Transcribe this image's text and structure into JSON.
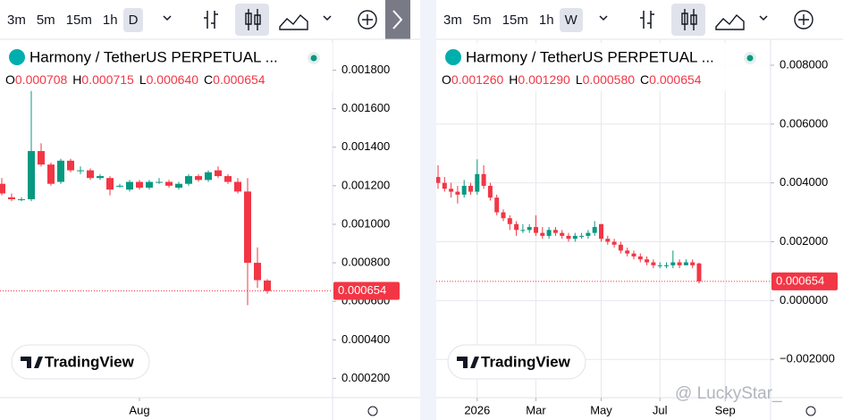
{
  "panels": [
    {
      "toolbar": {
        "intervals": [
          "3m",
          "5m",
          "15m",
          "1h",
          "D"
        ]
      },
      "title": "Harmony / TetherUS PERPETUAL ...",
      "legend": [
        "O",
        "0.000708",
        "H",
        "0.000715",
        "L",
        "0.000640",
        "C",
        "0.000654"
      ],
      "chart": {
        "type": "candlestick",
        "grid": false,
        "up_color": "#089981",
        "down_color": "#f23645",
        "categories": [
          null,
          null,
          null,
          null,
          null,
          null,
          null,
          null,
          null,
          null,
          null,
          null,
          null,
          null,
          "Aug",
          null,
          null,
          null,
          null,
          null,
          null,
          null,
          null,
          null,
          null,
          null,
          null,
          null
        ],
        "open": [
          0.00121,
          0.00114,
          0.00113,
          0.00113,
          0.00138,
          0.00131,
          0.00122,
          0.00133,
          0.00128,
          0.00128,
          0.00124,
          0.00124,
          0.0012,
          0.00118,
          0.00122,
          0.00119,
          0.00122,
          0.00122,
          0.00119,
          0.00121,
          0.00125,
          0.00123,
          0.00128,
          0.00125,
          0.00122,
          0.00117,
          0.0008,
          0.000708
        ],
        "high": [
          0.00124,
          0.00116,
          0.00114,
          0.0017,
          0.00142,
          0.00132,
          0.00134,
          0.00134,
          0.0013,
          0.00129,
          0.00126,
          0.00125,
          0.00121,
          0.00123,
          0.00123,
          0.00123,
          0.00124,
          0.00123,
          0.00122,
          0.00126,
          0.00126,
          0.00128,
          0.0013,
          0.00126,
          0.00124,
          0.00124,
          0.00088,
          0.000715
        ],
        "low": [
          0.00115,
          0.00112,
          0.00112,
          0.00112,
          0.0013,
          0.0012,
          0.00121,
          0.00127,
          0.00126,
          0.00123,
          0.00123,
          0.00115,
          0.00119,
          0.00117,
          0.00118,
          0.00118,
          0.00121,
          0.00119,
          0.00118,
          0.0012,
          0.00122,
          0.00122,
          0.00124,
          0.00121,
          0.00116,
          0.00058,
          0.00067,
          0.00064
        ],
        "close": [
          0.00116,
          0.00113,
          0.00113,
          0.00138,
          0.00131,
          0.00121,
          0.00133,
          0.00128,
          0.00128,
          0.00124,
          0.00125,
          0.00118,
          0.0012,
          0.00122,
          0.00119,
          0.00122,
          0.00122,
          0.0012,
          0.00121,
          0.00125,
          0.00123,
          0.00127,
          0.00125,
          0.00122,
          0.00117,
          0.0008,
          0.00071,
          0.000654
        ],
        "ylim": [
          0.0001,
          0.00196
        ],
        "yticks": [
          {
            "value": 0.0002,
            "label": "0.000200"
          },
          {
            "value": 0.0004,
            "label": "0.000400"
          },
          {
            "value": 0.0006,
            "label": "0.000600"
          },
          {
            "value": 0.0008,
            "label": "0.000800"
          },
          {
            "value": 0.001,
            "label": "0.001000"
          },
          {
            "value": 0.0012,
            "label": "0.001200"
          },
          {
            "value": 0.0014,
            "label": "0.001400"
          },
          {
            "value": 0.0016,
            "label": "0.001600"
          },
          {
            "value": 0.0018,
            "label": "0.001800"
          }
        ],
        "last_price": {
          "value": 0.000654,
          "label": "0.000654"
        }
      }
    },
    {
      "toolbar": {
        "intervals": [
          "3m",
          "5m",
          "15m",
          "1h",
          "W"
        ]
      },
      "title": "Harmony / TetherUS PERPETUAL ...",
      "legend": [
        "O",
        "0.001260",
        "H",
        "0.001290",
        "L",
        "0.000580",
        "C",
        "0.000654"
      ],
      "chart": {
        "type": "candlestick",
        "grid": true,
        "up_color": "#089981",
        "down_color": "#f23645",
        "categories": [
          null,
          null,
          null,
          null,
          null,
          null,
          "2026",
          null,
          null,
          null,
          null,
          null,
          null,
          null,
          null,
          "Mar",
          null,
          null,
          null,
          null,
          null,
          null,
          null,
          null,
          null,
          "May",
          null,
          null,
          null,
          null,
          null,
          null,
          null,
          null,
          "Jul",
          null,
          null,
          null,
          null,
          null,
          null,
          null,
          null,
          null,
          "Sep"
        ],
        "open": [
          0.0042,
          0.004,
          0.0038,
          0.0037,
          0.0036,
          0.0039,
          0.0037,
          0.0043,
          0.0039,
          0.0035,
          0.003,
          0.0028,
          0.0026,
          0.0024,
          0.0024,
          0.0025,
          0.0023,
          0.0022,
          0.0024,
          0.0023,
          0.0022,
          0.0021,
          0.0022,
          0.0022,
          0.0023,
          0.0026,
          0.0021,
          0.002,
          0.0019,
          0.0017,
          0.0016,
          0.0015,
          0.0014,
          0.0013,
          0.0012,
          0.0012,
          0.0012,
          0.0013,
          0.0012,
          0.0013,
          0.00126,
          null,
          null,
          null,
          null
        ],
        "high": [
          0.0046,
          0.0042,
          0.004,
          0.0039,
          0.0041,
          0.004,
          0.0048,
          0.0046,
          0.004,
          0.0036,
          0.0031,
          0.0029,
          0.0027,
          0.0026,
          0.0026,
          0.0029,
          0.0025,
          0.0025,
          0.0025,
          0.0024,
          0.0023,
          0.0023,
          0.0023,
          0.0024,
          0.0027,
          0.0026,
          0.0022,
          0.0021,
          0.002,
          0.0018,
          0.0017,
          0.0016,
          0.0015,
          0.0014,
          0.0013,
          0.0013,
          0.0017,
          0.0014,
          0.0014,
          0.0014,
          0.00129,
          null,
          null,
          null,
          null
        ],
        "low": [
          0.0038,
          0.0037,
          0.0035,
          0.0033,
          0.0035,
          0.0036,
          0.0036,
          0.0038,
          0.0034,
          0.0029,
          0.0027,
          0.0024,
          0.0022,
          0.0023,
          0.0023,
          0.0022,
          0.0021,
          0.0021,
          0.0022,
          0.0021,
          0.002,
          0.002,
          0.0021,
          0.0021,
          0.0022,
          0.002,
          0.0019,
          0.0018,
          0.0016,
          0.0015,
          0.0014,
          0.0013,
          0.0012,
          0.0011,
          0.0011,
          0.0011,
          0.0011,
          0.0011,
          0.0012,
          0.0011,
          0.00058,
          null,
          null,
          null,
          null
        ],
        "close": [
          0.004,
          0.0038,
          0.0037,
          0.0036,
          0.0039,
          0.0037,
          0.0043,
          0.0039,
          0.0035,
          0.003,
          0.0028,
          0.0026,
          0.0024,
          0.0024,
          0.0025,
          0.0023,
          0.0022,
          0.0024,
          0.0023,
          0.0022,
          0.0021,
          0.0022,
          0.0022,
          0.0023,
          0.0025,
          0.0021,
          0.002,
          0.0019,
          0.0017,
          0.0016,
          0.0015,
          0.0014,
          0.0013,
          0.0012,
          0.0012,
          0.0012,
          0.0013,
          0.0012,
          0.0013,
          0.0012,
          0.000654,
          null,
          null,
          null,
          null
        ],
        "ylim": [
          -0.0033,
          0.00888
        ],
        "yticks": [
          {
            "value": -0.002,
            "label": "−0.002000"
          },
          {
            "value": 0,
            "label": "0.000000"
          },
          {
            "value": 0.002,
            "label": "0.002000"
          },
          {
            "value": 0.004,
            "label": "0.004000"
          },
          {
            "value": 0.006,
            "label": "0.006000"
          },
          {
            "value": 0.008,
            "label": "0.008000"
          }
        ],
        "last_price": {
          "value": 0.000654,
          "label": "0.000654"
        }
      }
    }
  ],
  "watermark": "TradingView",
  "credit": "@ LuckyStar_"
}
